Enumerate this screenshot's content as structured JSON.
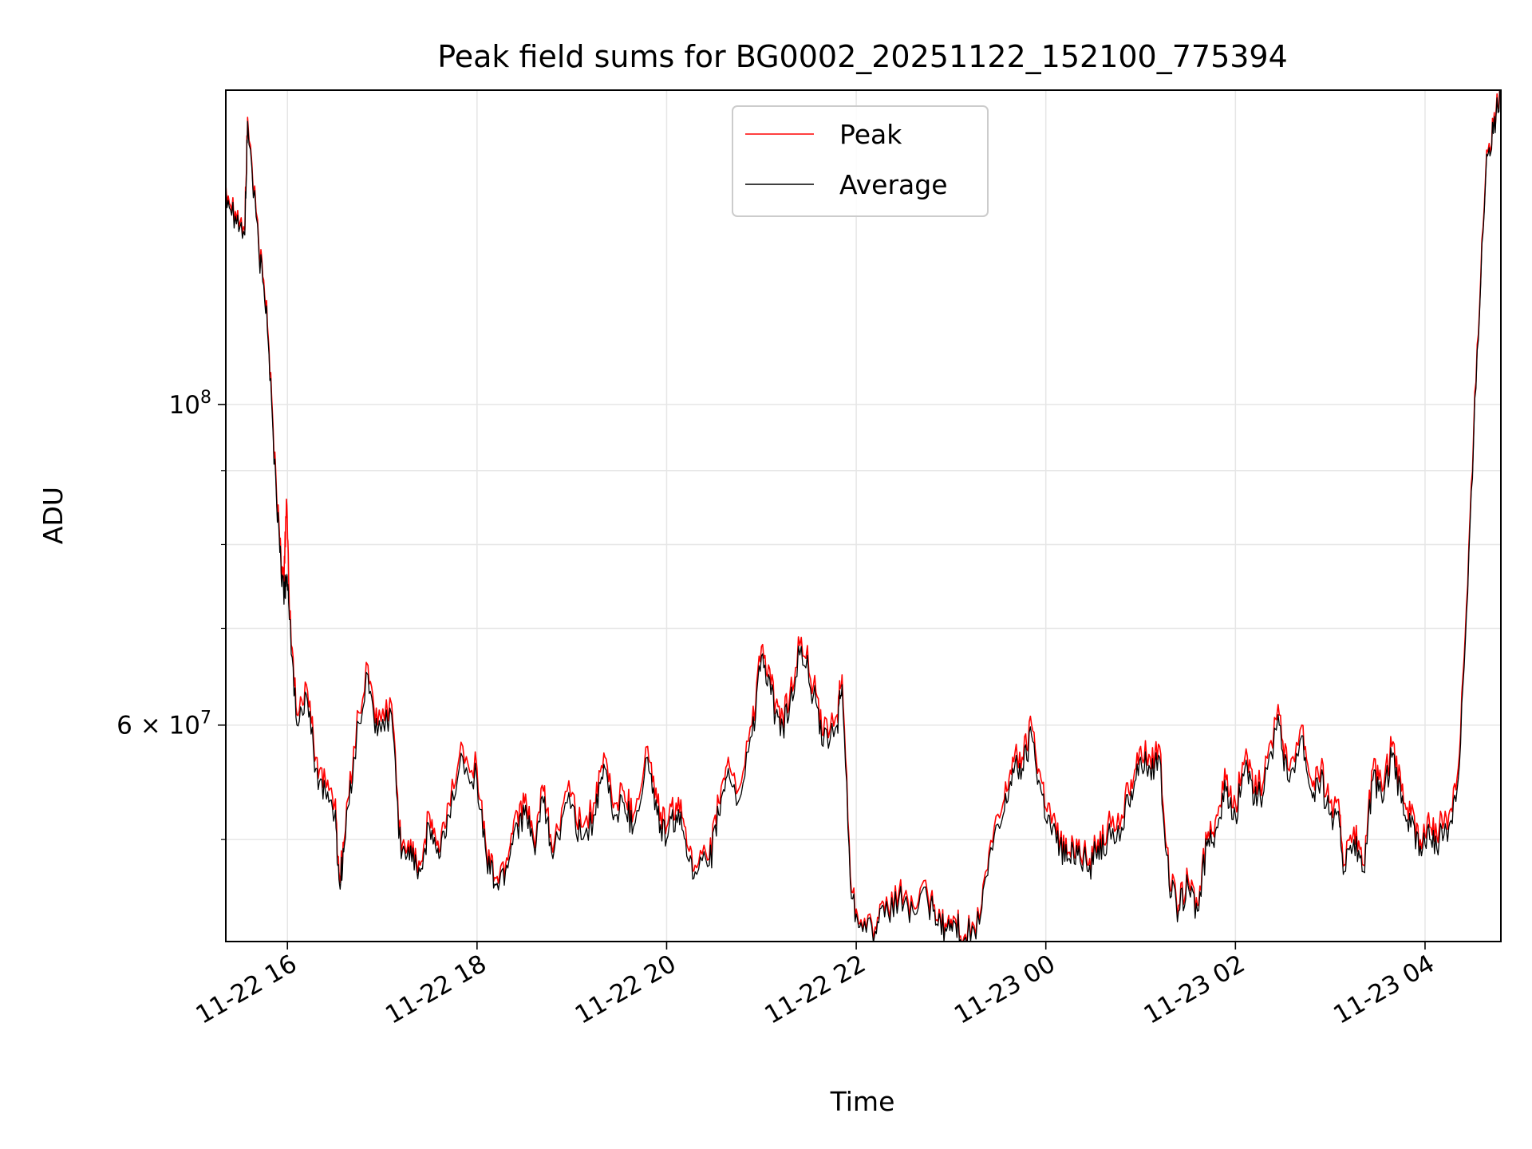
{
  "chart_data": {
    "type": "line",
    "title": "Peak field sums for BG0002_20251122_152100_775394",
    "xlabel": "Time",
    "ylabel": "ADU",
    "yscale": "log",
    "ylim": [
      42500000,
      165000000
    ],
    "xlim_hours": [
      15.35,
      28.8
    ],
    "x_unit": "hours since 2025-11-22 00:00",
    "x_ticks": [
      {
        "value": 16,
        "label": "11-22 16"
      },
      {
        "value": 18,
        "label": "11-22 18"
      },
      {
        "value": 20,
        "label": "11-22 20"
      },
      {
        "value": 22,
        "label": "11-22 22"
      },
      {
        "value": 24,
        "label": "11-23 00"
      },
      {
        "value": 26,
        "label": "11-23 02"
      },
      {
        "value": 28,
        "label": "11-23 04"
      }
    ],
    "y_major_ticks": [
      {
        "value": 100000000,
        "base": "10",
        "exp": "8",
        "coef": ""
      },
      {
        "value": 60000000,
        "base": "10",
        "exp": "7",
        "coef": "6 × "
      }
    ],
    "y_minor_ticks": [
      50000000,
      70000000,
      80000000,
      90000000
    ],
    "legend": {
      "position": "top-center",
      "entries": [
        "Peak",
        "Average"
      ]
    },
    "grid": true,
    "series": [
      {
        "name": "Peak",
        "color": "#ff0000",
        "points": [
          [
            15.35,
            142000000.0
          ],
          [
            15.45,
            136000000.0
          ],
          [
            15.55,
            132000000.0
          ],
          [
            15.58,
            158000000.0
          ],
          [
            15.7,
            128000000.0
          ],
          [
            15.78,
            118000000.0
          ],
          [
            15.85,
            96000000.0
          ],
          [
            15.92,
            80000000.0
          ],
          [
            15.96,
            75000000.0
          ],
          [
            15.99,
            86000000.0
          ],
          [
            16.02,
            72000000.0
          ],
          [
            16.1,
            61000000.0
          ],
          [
            16.2,
            64000000.0
          ],
          [
            16.3,
            57000000.0
          ],
          [
            16.4,
            55000000.0
          ],
          [
            16.5,
            53000000.0
          ],
          [
            16.55,
            47000000.0
          ],
          [
            16.6,
            50000000.0
          ],
          [
            16.7,
            58000000.0
          ],
          [
            16.85,
            66000000.0
          ],
          [
            16.95,
            60000000.0
          ],
          [
            17.1,
            62000000.0
          ],
          [
            17.2,
            49000000.0
          ],
          [
            17.3,
            50000000.0
          ],
          [
            17.4,
            48000000.0
          ],
          [
            17.5,
            52000000.0
          ],
          [
            17.6,
            49000000.0
          ],
          [
            17.7,
            53000000.0
          ],
          [
            17.85,
            58000000.0
          ],
          [
            18.0,
            56000000.0
          ],
          [
            18.1,
            49000000.0
          ],
          [
            18.2,
            47000000.0
          ],
          [
            18.3,
            48000000.0
          ],
          [
            18.4,
            52000000.0
          ],
          [
            18.5,
            53000000.0
          ],
          [
            18.6,
            50000000.0
          ],
          [
            18.7,
            54000000.0
          ],
          [
            18.8,
            49000000.0
          ],
          [
            18.95,
            54000000.0
          ],
          [
            19.1,
            51000000.0
          ],
          [
            19.25,
            53000000.0
          ],
          [
            19.35,
            57000000.0
          ],
          [
            19.45,
            53000000.0
          ],
          [
            19.55,
            54000000.0
          ],
          [
            19.65,
            52000000.0
          ],
          [
            19.8,
            58000000.0
          ],
          [
            19.9,
            53000000.0
          ],
          [
            20.0,
            51000000.0
          ],
          [
            20.1,
            53000000.0
          ],
          [
            20.2,
            51000000.0
          ],
          [
            20.3,
            48000000.0
          ],
          [
            20.45,
            48500000.0
          ],
          [
            20.55,
            53000000.0
          ],
          [
            20.65,
            57000000.0
          ],
          [
            20.75,
            54000000.0
          ],
          [
            20.9,
            60000000.0
          ],
          [
            21.0,
            68000000.0
          ],
          [
            21.1,
            64000000.0
          ],
          [
            21.2,
            60000000.0
          ],
          [
            21.3,
            63000000.0
          ],
          [
            21.42,
            69000000.0
          ],
          [
            21.55,
            64000000.0
          ],
          [
            21.65,
            59000000.0
          ],
          [
            21.8,
            61000000.0
          ],
          [
            21.85,
            65000000.0
          ],
          [
            21.95,
            46000000.0
          ],
          [
            22.05,
            44000000.0
          ],
          [
            22.2,
            43500000.0
          ],
          [
            22.3,
            44500000.0
          ],
          [
            22.45,
            46000000.0
          ],
          [
            22.6,
            45000000.0
          ],
          [
            22.75,
            46000000.0
          ],
          [
            22.85,
            44000000.0
          ],
          [
            22.95,
            43500000.0
          ],
          [
            23.05,
            44000000.0
          ],
          [
            23.15,
            43000000.0
          ],
          [
            23.3,
            44000000.0
          ],
          [
            23.4,
            49000000.0
          ],
          [
            23.55,
            53000000.0
          ],
          [
            23.65,
            57000000.0
          ],
          [
            23.75,
            57000000.0
          ],
          [
            23.85,
            60000000.0
          ],
          [
            23.95,
            55000000.0
          ],
          [
            24.05,
            52000000.0
          ],
          [
            24.15,
            50000000.0
          ],
          [
            24.25,
            49000000.0
          ],
          [
            24.35,
            50000000.0
          ],
          [
            24.45,
            48000000.0
          ],
          [
            24.55,
            50000000.0
          ],
          [
            24.65,
            51000000.0
          ],
          [
            24.8,
            52000000.0
          ],
          [
            24.9,
            55000000.0
          ],
          [
            25.0,
            58000000.0
          ],
          [
            25.1,
            57000000.0
          ],
          [
            25.2,
            58000000.0
          ],
          [
            25.3,
            47000000.0
          ],
          [
            25.4,
            45000000.0
          ],
          [
            25.5,
            47000000.0
          ],
          [
            25.6,
            45000000.0
          ],
          [
            25.7,
            50000000.0
          ],
          [
            25.8,
            52000000.0
          ],
          [
            25.9,
            55000000.0
          ],
          [
            26.0,
            53000000.0
          ],
          [
            26.1,
            57000000.0
          ],
          [
            26.2,
            54000000.0
          ],
          [
            26.3,
            55000000.0
          ],
          [
            26.45,
            62000000.0
          ],
          [
            26.55,
            56000000.0
          ],
          [
            26.7,
            60000000.0
          ],
          [
            26.8,
            55000000.0
          ],
          [
            26.9,
            56000000.0
          ],
          [
            27.0,
            53000000.0
          ],
          [
            27.1,
            52000000.0
          ],
          [
            27.15,
            48000000.0
          ],
          [
            27.25,
            51000000.0
          ],
          [
            27.35,
            48000000.0
          ],
          [
            27.45,
            56000000.0
          ],
          [
            27.55,
            54000000.0
          ],
          [
            27.65,
            58000000.0
          ],
          [
            27.75,
            54000000.0
          ],
          [
            27.85,
            52000000.0
          ],
          [
            27.95,
            50000000.0
          ],
          [
            28.05,
            51000000.0
          ],
          [
            28.15,
            51000000.0
          ],
          [
            28.25,
            52000000.0
          ],
          [
            28.35,
            56000000.0
          ],
          [
            28.45,
            75000000.0
          ],
          [
            28.55,
            110000000.0
          ],
          [
            28.65,
            150000000.0
          ],
          [
            28.72,
            155000000.0
          ],
          [
            28.8,
            165000000.0
          ]
        ]
      },
      {
        "name": "Average",
        "color": "#000000",
        "points": [
          [
            15.35,
            141000000.0
          ],
          [
            15.45,
            135000000.0
          ],
          [
            15.55,
            131000000.0
          ],
          [
            15.58,
            157000000.0
          ],
          [
            15.7,
            127000000.0
          ],
          [
            15.78,
            117000000.0
          ],
          [
            15.85,
            95000000.0
          ],
          [
            15.92,
            79000000.0
          ],
          [
            15.96,
            74000000.0
          ],
          [
            15.99,
            76000000.0
          ],
          [
            16.02,
            71000000.0
          ],
          [
            16.1,
            60000000.0
          ],
          [
            16.2,
            63000000.0
          ],
          [
            16.3,
            56000000.0
          ],
          [
            16.4,
            54000000.0
          ],
          [
            16.5,
            52000000.0
          ],
          [
            16.55,
            46500000.0
          ],
          [
            16.6,
            49500000.0
          ],
          [
            16.7,
            57000000.0
          ],
          [
            16.85,
            65000000.0
          ],
          [
            16.95,
            59000000.0
          ],
          [
            17.1,
            61000000.0
          ],
          [
            17.2,
            48500000.0
          ],
          [
            17.3,
            49500000.0
          ],
          [
            17.4,
            47500000.0
          ],
          [
            17.5,
            51000000.0
          ],
          [
            17.6,
            48500000.0
          ],
          [
            17.7,
            52000000.0
          ],
          [
            17.85,
            57000000.0
          ],
          [
            18.0,
            55000000.0
          ],
          [
            18.1,
            48500000.0
          ],
          [
            18.2,
            46500000.0
          ],
          [
            18.3,
            47500000.0
          ],
          [
            18.4,
            51000000.0
          ],
          [
            18.5,
            52000000.0
          ],
          [
            18.6,
            49500000.0
          ],
          [
            18.7,
            53000000.0
          ],
          [
            18.8,
            48500000.0
          ],
          [
            18.95,
            53000000.0
          ],
          [
            19.1,
            50000000.0
          ],
          [
            19.25,
            52000000.0
          ],
          [
            19.35,
            56000000.0
          ],
          [
            19.45,
            52000000.0
          ],
          [
            19.55,
            53000000.0
          ],
          [
            19.65,
            51000000.0
          ],
          [
            19.8,
            57000000.0
          ],
          [
            19.9,
            52000000.0
          ],
          [
            20.0,
            50000000.0
          ],
          [
            20.1,
            52000000.0
          ],
          [
            20.2,
            50000000.0
          ],
          [
            20.3,
            47500000.0
          ],
          [
            20.45,
            48000000.0
          ],
          [
            20.55,
            52000000.0
          ],
          [
            20.65,
            56000000.0
          ],
          [
            20.75,
            53000000.0
          ],
          [
            20.9,
            59000000.0
          ],
          [
            21.0,
            67000000.0
          ],
          [
            21.1,
            63000000.0
          ],
          [
            21.2,
            59000000.0
          ],
          [
            21.3,
            62000000.0
          ],
          [
            21.42,
            68000000.0
          ],
          [
            21.55,
            63000000.0
          ],
          [
            21.65,
            58000000.0
          ],
          [
            21.8,
            60000000.0
          ],
          [
            21.85,
            64000000.0
          ],
          [
            21.95,
            45500000.0
          ],
          [
            22.05,
            43800000.0
          ],
          [
            22.2,
            43200000.0
          ],
          [
            22.3,
            44200000.0
          ],
          [
            22.45,
            45500000.0
          ],
          [
            22.6,
            44600000.0
          ],
          [
            22.75,
            45500000.0
          ],
          [
            22.85,
            43700000.0
          ],
          [
            22.95,
            43200000.0
          ],
          [
            23.05,
            43700000.0
          ],
          [
            23.15,
            42800000.0
          ],
          [
            23.3,
            43700000.0
          ],
          [
            23.4,
            48500000.0
          ],
          [
            23.55,
            52000000.0
          ],
          [
            23.65,
            56000000.0
          ],
          [
            23.75,
            56000000.0
          ],
          [
            23.85,
            59000000.0
          ],
          [
            23.95,
            54000000.0
          ],
          [
            24.05,
            51000000.0
          ],
          [
            24.15,
            49500000.0
          ],
          [
            24.25,
            48500000.0
          ],
          [
            24.35,
            49500000.0
          ],
          [
            24.45,
            47500000.0
          ],
          [
            24.55,
            49500000.0
          ],
          [
            24.65,
            50000000.0
          ],
          [
            24.8,
            51000000.0
          ],
          [
            24.9,
            54000000.0
          ],
          [
            25.0,
            57000000.0
          ],
          [
            25.1,
            56000000.0
          ],
          [
            25.2,
            57000000.0
          ],
          [
            25.3,
            46500000.0
          ],
          [
            25.4,
            44600000.0
          ],
          [
            25.5,
            46500000.0
          ],
          [
            25.6,
            44600000.0
          ],
          [
            25.7,
            49500000.0
          ],
          [
            25.8,
            51000000.0
          ],
          [
            25.9,
            54000000.0
          ],
          [
            26.0,
            52000000.0
          ],
          [
            26.1,
            56000000.0
          ],
          [
            26.2,
            53000000.0
          ],
          [
            26.3,
            54000000.0
          ],
          [
            26.45,
            61000000.0
          ],
          [
            26.55,
            55000000.0
          ],
          [
            26.7,
            59000000.0
          ],
          [
            26.8,
            54000000.0
          ],
          [
            26.9,
            55000000.0
          ],
          [
            27.0,
            52000000.0
          ],
          [
            27.1,
            51000000.0
          ],
          [
            27.15,
            47500000.0
          ],
          [
            27.25,
            50000000.0
          ],
          [
            27.35,
            47500000.0
          ],
          [
            27.45,
            55000000.0
          ],
          [
            27.55,
            53000000.0
          ],
          [
            27.65,
            57000000.0
          ],
          [
            27.75,
            53000000.0
          ],
          [
            27.85,
            51000000.0
          ],
          [
            27.95,
            49500000.0
          ],
          [
            28.05,
            50000000.0
          ],
          [
            28.15,
            50000000.0
          ],
          [
            28.25,
            51000000.0
          ],
          [
            28.35,
            55000000.0
          ],
          [
            28.45,
            74000000.0
          ],
          [
            28.55,
            109000000.0
          ],
          [
            28.65,
            149000000.0
          ],
          [
            28.72,
            154000000.0
          ],
          [
            28.8,
            164000000.0
          ]
        ]
      }
    ]
  }
}
